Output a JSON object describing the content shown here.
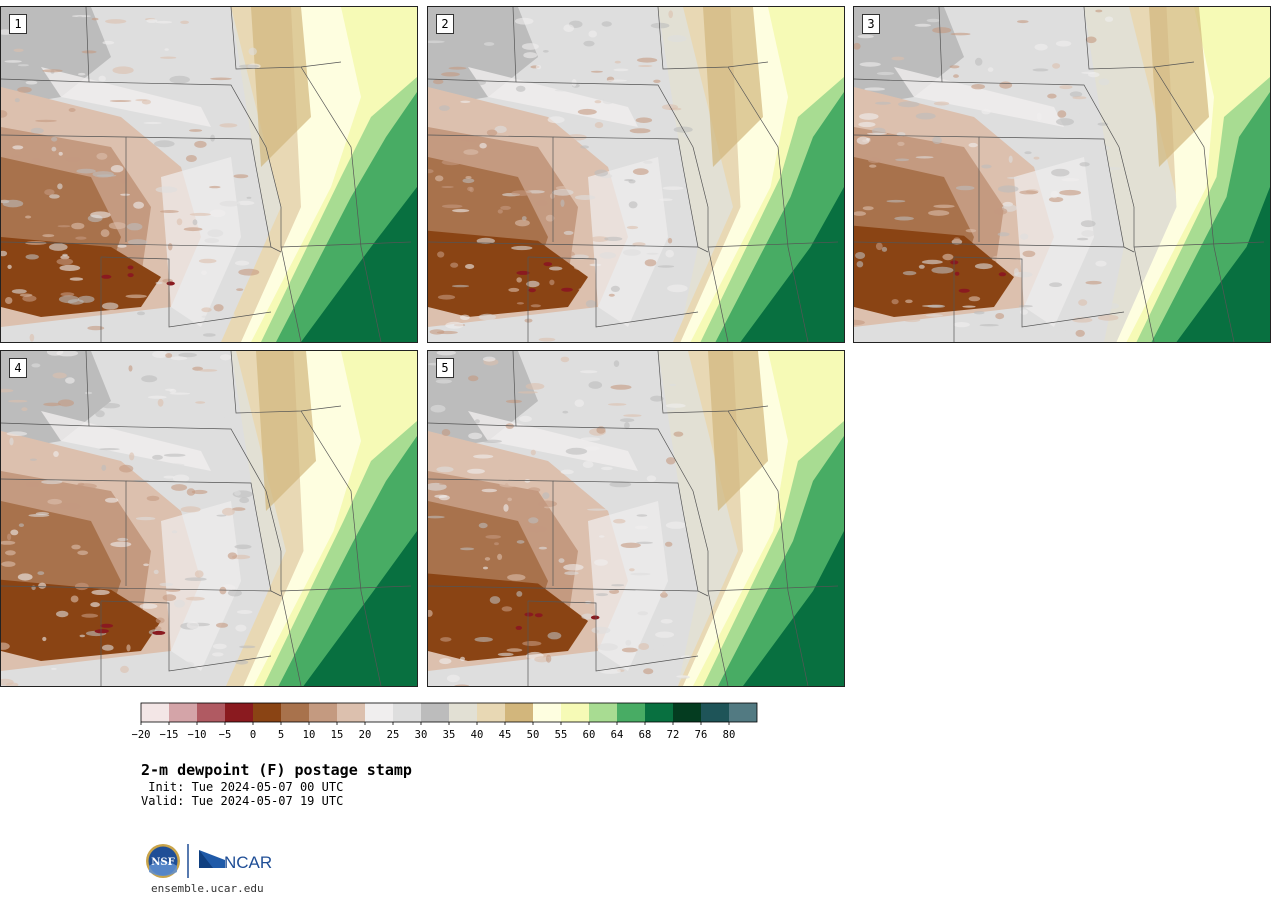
{
  "panels": [
    {
      "label": "1"
    },
    {
      "label": "2"
    },
    {
      "label": "3"
    },
    {
      "label": "4"
    },
    {
      "label": "5"
    }
  ],
  "colorbar": {
    "tick_labels": [
      "−20",
      "−15",
      "−10",
      "−5",
      "0",
      "5",
      "10",
      "15",
      "20",
      "25",
      "30",
      "35",
      "40",
      "45",
      "50",
      "55",
      "60",
      "64",
      "68",
      "72",
      "76",
      "80"
    ],
    "colors": [
      "#f3e6e6",
      "#d4a4a8",
      "#b05a62",
      "#8a1a1f",
      "#8a4414",
      "#a8724c",
      "#c49a80",
      "#dcc0ae",
      "#f0eeee",
      "#dedede",
      "#bcbcbc",
      "#e2e0d4",
      "#e8d8b4",
      "#d2b67c",
      "#fefee0",
      "#f6fab6",
      "#a8dc92",
      "#48ac64",
      "#087040",
      "#043c20",
      "#1e5458",
      "#527a82"
    ]
  },
  "title": {
    "main": "2-m dewpoint (F) postage stamp",
    "init": " Init: Tue 2024-05-07 00 UTC",
    "valid": "Valid: Tue 2024-05-07 19 UTC"
  },
  "logos": {
    "nsf": "NSF",
    "ncar": "NCAR"
  },
  "footer": {
    "url": "ensemble.ucar.edu"
  }
}
